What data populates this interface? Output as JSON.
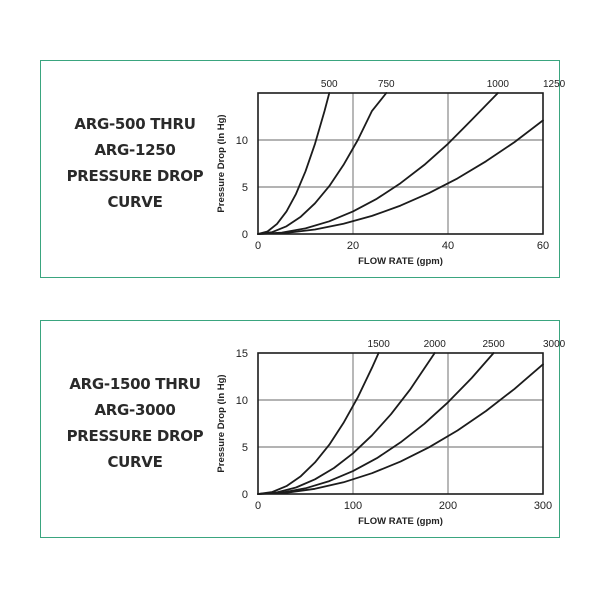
{
  "chart_data": [
    {
      "type": "line",
      "caption": [
        "ARG-500 THRU",
        "ARG-1250",
        "PRESSURE DROP",
        "CURVE"
      ],
      "xlabel": "FLOW RATE (gpm)",
      "ylabel": "Pressure Drop (In Hg)",
      "xlim": [
        0,
        60
      ],
      "ylim": [
        0,
        15
      ],
      "xticks": [
        "0",
        "20",
        "40",
        "60"
      ],
      "yticks": [
        "0",
        "5",
        "10"
      ],
      "grid": true,
      "series": [
        {
          "name": "500",
          "x": [
            0,
            2,
            4,
            6,
            8,
            10,
            12,
            14,
            15
          ],
          "y": [
            0,
            0.27,
            1.07,
            2.4,
            4.27,
            6.67,
            9.6,
            13.07,
            15
          ]
        },
        {
          "name": "750",
          "x": [
            0,
            3,
            6,
            9,
            12,
            15,
            18,
            21,
            24,
            27
          ],
          "y": [
            0,
            0.2,
            0.82,
            1.84,
            3.27,
            5.1,
            7.35,
            10.0,
            13.1,
            15
          ]
        },
        {
          "name": "1000",
          "x": [
            0,
            5,
            10,
            15,
            20,
            25,
            30,
            35,
            40,
            45,
            50.5
          ],
          "y": [
            0,
            0.15,
            0.6,
            1.35,
            2.4,
            3.75,
            5.4,
            7.35,
            9.6,
            12.15,
            15
          ]
        },
        {
          "name": "1250",
          "x": [
            0,
            6,
            12,
            18,
            24,
            30,
            36,
            42,
            48,
            54,
            60
          ],
          "y": [
            0,
            0.12,
            0.48,
            1.09,
            1.93,
            3.02,
            4.35,
            5.92,
            7.73,
            9.78,
            12.08
          ]
        }
      ]
    },
    {
      "type": "line",
      "caption": [
        "ARG-1500 THRU",
        "ARG-3000",
        "PRESSURE DROP",
        "CURVE"
      ],
      "xlabel": "FLOW RATE (gpm)",
      "ylabel": "Pressure Drop (In Hg)",
      "xlim": [
        0,
        300
      ],
      "ylim": [
        0,
        15
      ],
      "xticks": [
        "0",
        "100",
        "200",
        "300"
      ],
      "yticks": [
        "0",
        "5",
        "10",
        "15"
      ],
      "grid": true,
      "series": [
        {
          "name": "1500",
          "x": [
            0,
            15,
            30,
            45,
            60,
            75,
            90,
            105,
            120,
            127
          ],
          "y": [
            0,
            0.21,
            0.84,
            1.89,
            3.36,
            5.25,
            7.56,
            10.29,
            13.44,
            15
          ]
        },
        {
          "name": "2000",
          "x": [
            0,
            20,
            40,
            60,
            80,
            100,
            120,
            140,
            160,
            186
          ],
          "y": [
            0,
            0.17,
            0.69,
            1.56,
            2.77,
            4.33,
            6.24,
            8.49,
            11.1,
            15
          ]
        },
        {
          "name": "2500",
          "x": [
            0,
            25,
            50,
            75,
            100,
            125,
            150,
            175,
            200,
            225,
            248
          ],
          "y": [
            0,
            0.15,
            0.61,
            1.37,
            2.44,
            3.81,
            5.49,
            7.47,
            9.76,
            12.35,
            15
          ]
        },
        {
          "name": "3000",
          "x": [
            0,
            30,
            60,
            90,
            120,
            150,
            180,
            210,
            240,
            270,
            300
          ],
          "y": [
            0,
            0.14,
            0.55,
            1.24,
            2.21,
            3.45,
            4.97,
            6.76,
            8.83,
            11.18,
            13.8
          ]
        }
      ]
    }
  ]
}
